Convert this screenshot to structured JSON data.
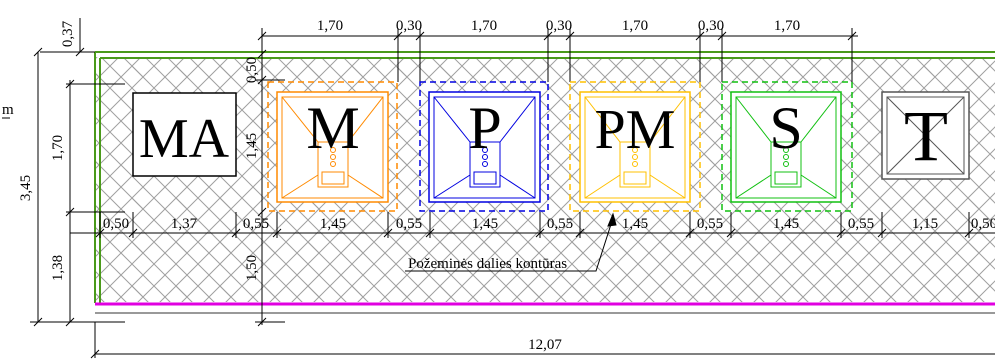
{
  "colors": {
    "boundary_green": "#4a9a1a",
    "magenta": "#e000e0",
    "orange": "#ff8a00",
    "blue": "#0000e0",
    "yellow": "#ffc000",
    "green": "#10c010",
    "gray": "#555555",
    "hatch": "#9a9a9a"
  },
  "top_dims": [
    "1,70",
    "0,30",
    "1,70",
    "0,30",
    "1,70",
    "0,30",
    "1,70"
  ],
  "row_dims": [
    "0,50",
    "1,37",
    "0,55",
    "1,45",
    "0,55",
    "1,45",
    "0,55",
    "1,45",
    "0,55",
    "1,45",
    "0,55",
    "1,15",
    "0,50"
  ],
  "left_dims": {
    "d037": "0,37",
    "d170": "1,70",
    "d345": "3,45",
    "d138": "1,38",
    "d050": "0,50",
    "d145": "1,45",
    "d150": "1,50"
  },
  "partial_label": "m",
  "bottom_dim": "12,07",
  "contour_label": "Požeminės dalies kontūras",
  "containers": [
    {
      "letter": "MA",
      "color_key": "black"
    },
    {
      "letter": "M",
      "color_key": "orange"
    },
    {
      "letter": "P",
      "color_key": "blue"
    },
    {
      "letter": "PM",
      "color_key": "yellow"
    },
    {
      "letter": "S",
      "color_key": "green"
    },
    {
      "letter": "T",
      "color_key": "gray"
    }
  ]
}
